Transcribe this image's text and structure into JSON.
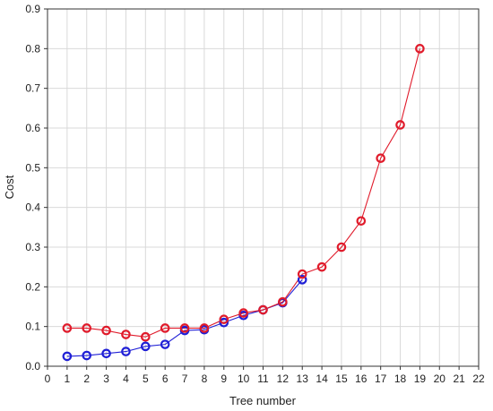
{
  "chart_data": {
    "type": "line",
    "xlabel": "Tree number",
    "ylabel": "Cost",
    "xlim": [
      0,
      22
    ],
    "ylim": [
      0,
      0.9
    ],
    "x_ticks": [
      0,
      1,
      2,
      3,
      4,
      5,
      6,
      7,
      8,
      9,
      10,
      11,
      12,
      13,
      14,
      15,
      16,
      17,
      18,
      19,
      20,
      21,
      22
    ],
    "y_ticks": [
      0.0,
      0.1,
      0.2,
      0.3,
      0.4,
      0.5,
      0.6,
      0.7,
      0.8,
      0.9
    ],
    "y_tick_labels": [
      "0.0",
      "0.1",
      "0.2",
      "0.3",
      "0.4",
      "0.5",
      "0.6",
      "0.7",
      "0.8",
      "0.9"
    ],
    "grid": true,
    "series": [
      {
        "color": "#1f1fd6",
        "x": [
          1,
          2,
          3,
          4,
          5,
          6,
          7,
          8,
          9,
          10,
          11,
          12,
          13
        ],
        "y": [
          0.025,
          0.027,
          0.032,
          0.037,
          0.05,
          0.055,
          0.09,
          0.092,
          0.11,
          0.128,
          0.142,
          0.16,
          0.218
        ]
      },
      {
        "color": "#e01b2b",
        "x": [
          1,
          2,
          3,
          4,
          5,
          6,
          7,
          8,
          9,
          10,
          11,
          12,
          13,
          14,
          15,
          16,
          17,
          18,
          19
        ],
        "y": [
          0.096,
          0.096,
          0.09,
          0.08,
          0.074,
          0.096,
          0.096,
          0.096,
          0.118,
          0.134,
          0.142,
          0.162,
          0.232,
          0.25,
          0.3,
          0.366,
          0.524,
          0.608,
          0.8
        ]
      }
    ]
  }
}
